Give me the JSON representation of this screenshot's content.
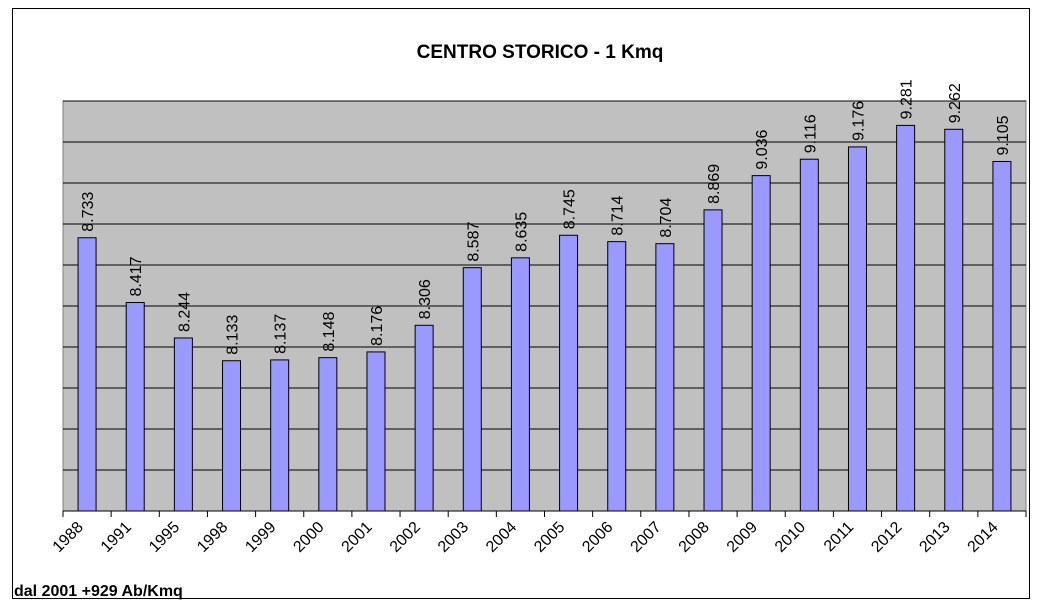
{
  "chart_data": {
    "type": "bar",
    "title": "CENTRO STORICO - 1 Kmq",
    "categories": [
      "1988",
      "1991",
      "1995",
      "1998",
      "1999",
      "2000",
      "2001",
      "2002",
      "2003",
      "2004",
      "2005",
      "2006",
      "2007",
      "2008",
      "2009",
      "2010",
      "2011",
      "2012",
      "2013",
      "2014"
    ],
    "values": [
      8733,
      8417,
      8244,
      8133,
      8137,
      8148,
      8176,
      8306,
      8587,
      8635,
      8745,
      8714,
      8704,
      8869,
      9036,
      9116,
      9176,
      9281,
      9262,
      9105
    ],
    "value_labels": [
      "8.733",
      "8.417",
      "8.244",
      "8.133",
      "8.137",
      "8.148",
      "8.176",
      "8.306",
      "8.587",
      "8.635",
      "8.745",
      "8.714",
      "8.704",
      "8.869",
      "9.036",
      "9.116",
      "9.176",
      "9.281",
      "9.262",
      "9.105"
    ],
    "color": "#9999ff",
    "ylim": [
      7400,
      9400
    ],
    "yticks": [
      7400,
      7600,
      7800,
      8000,
      8200,
      8400,
      8600,
      8800,
      9000,
      9200,
      9400
    ],
    "grid": true,
    "annotation": "dal 2001 +929 Ab/Kmq"
  }
}
